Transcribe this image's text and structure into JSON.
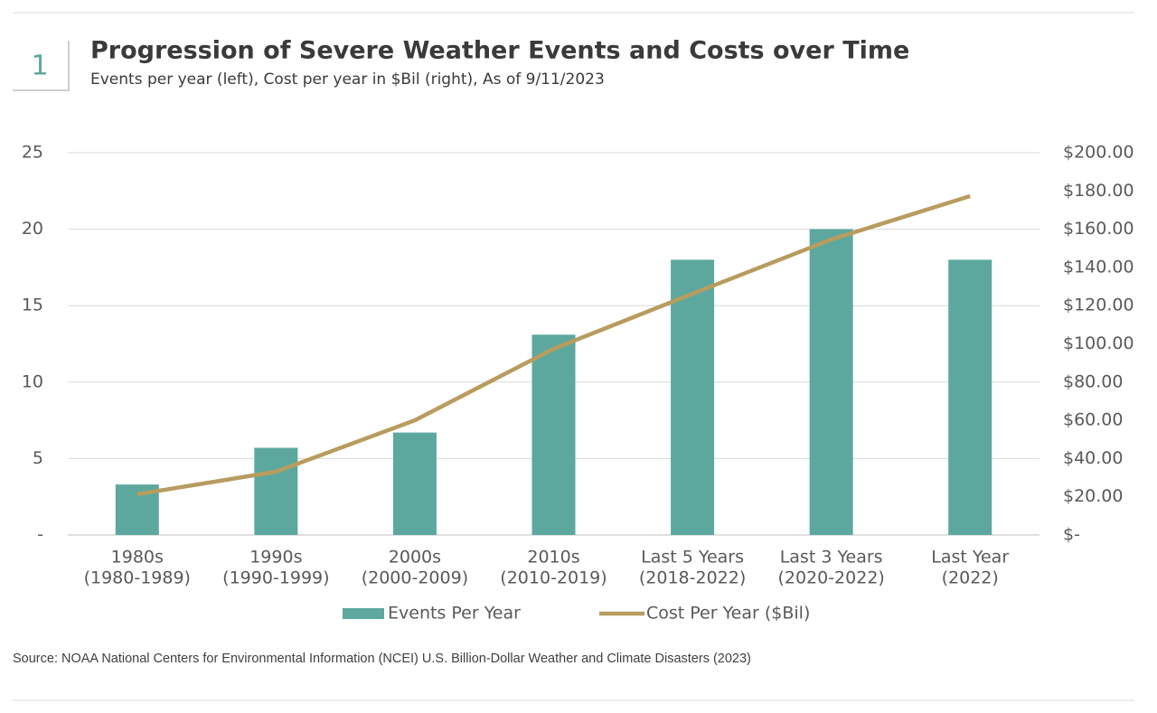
{
  "badge": "1",
  "source": "Source: NOAA National Centers for Environmental Information (NCEI) U.S. Billion-Dollar Weather and Climate Disasters (2023)",
  "chart_data": {
    "type": "bar-line",
    "title": "Progression of Severe Weather Events and Costs over Time",
    "subtitle": "Events per year (left), Cost per year in $Bil (right), As of 9/11/2023",
    "categories": [
      [
        "1980s",
        "(1980-1989)"
      ],
      [
        "1990s",
        "(1990-1999)"
      ],
      [
        "2000s",
        "(2000-2009)"
      ],
      [
        "2010s",
        "(2010-2019)"
      ],
      [
        "Last 5 Years",
        "(2018-2022)"
      ],
      [
        "Last 3 Years",
        "(2020-2022)"
      ],
      [
        "Last Year",
        "(2022)"
      ]
    ],
    "series": [
      {
        "name": "Events Per Year",
        "type": "bar",
        "color": "#5ca89e",
        "values": [
          3.3,
          5.7,
          6.7,
          13.1,
          18,
          20,
          18
        ]
      },
      {
        "name": "Cost Per Year ($Bil)",
        "type": "line",
        "axis": "y2",
        "color": "#b89c5f",
        "values": [
          21.3,
          33.1,
          60,
          97.4,
          126.2,
          154.6,
          177.3
        ]
      }
    ],
    "ylim": [
      0,
      25
    ],
    "yticks": [
      {
        "value": 0,
        "label": "-"
      },
      5,
      10,
      15,
      20,
      25
    ],
    "y2lim": [
      0,
      200
    ],
    "y2ticks": [
      {
        "value": 0,
        "label": "$-"
      },
      {
        "value": 20,
        "label": "$20.00"
      },
      {
        "value": 40,
        "label": "$40.00"
      },
      {
        "value": 60,
        "label": "$60.00"
      },
      {
        "value": 80,
        "label": "$80.00"
      },
      {
        "value": 100,
        "label": "$100.00"
      },
      {
        "value": 120,
        "label": "$120.00"
      },
      {
        "value": 140,
        "label": "$140.00"
      },
      {
        "value": 160,
        "label": "$160.00"
      },
      {
        "value": 180,
        "label": "$180.00"
      },
      {
        "value": 200,
        "label": "$200.00"
      }
    ],
    "grid": true,
    "legend": "bottom"
  }
}
